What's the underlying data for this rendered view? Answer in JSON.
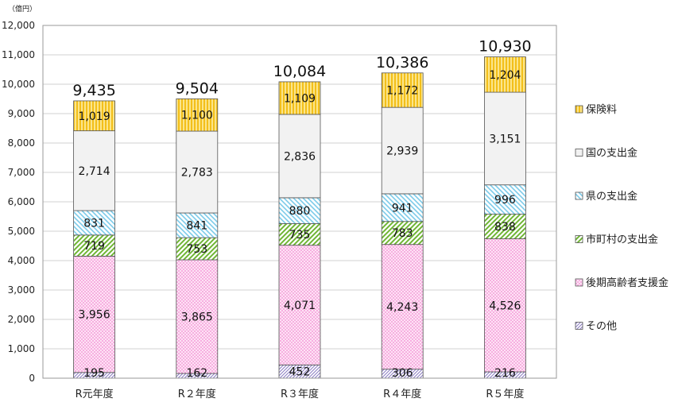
{
  "chart_data": {
    "type": "bar",
    "stacked": true,
    "unit_label": "（億円）",
    "categories": [
      "R元年度",
      "R２年度",
      "R３年度",
      "R４年度",
      "R５年度"
    ],
    "series": [
      {
        "name": "その他",
        "values": [
          195,
          162,
          452,
          306,
          216
        ],
        "color": "#9b8fc9",
        "pattern": "diag-dense"
      },
      {
        "name": "後期高齢者支援金",
        "values": [
          3956,
          3865,
          4071,
          4243,
          4526
        ],
        "color": "#f59ad8",
        "pattern": "dots"
      },
      {
        "name": "市町村の支出金",
        "values": [
          719,
          753,
          735,
          783,
          838
        ],
        "color": "#7cc043",
        "pattern": "diag-up"
      },
      {
        "name": "県の支出金",
        "values": [
          831,
          841,
          880,
          941,
          996
        ],
        "color": "#6cc3e6",
        "pattern": "diag-down"
      },
      {
        "name": "国の支出金",
        "values": [
          2714,
          2783,
          2836,
          2939,
          3151
        ],
        "color": "#f2f2f2",
        "pattern": "solid"
      },
      {
        "name": "保険料",
        "values": [
          1019,
          1100,
          1109,
          1172,
          1204
        ],
        "color": "#f5c518",
        "pattern": "vertical"
      }
    ],
    "segment_labels": [
      [
        "195",
        "162",
        "452",
        "306",
        "216"
      ],
      [
        "3,956",
        "3,865",
        "4,071",
        "4,243",
        "4,526"
      ],
      [
        "719",
        "753",
        "735",
        "783",
        "838"
      ],
      [
        "831",
        "841",
        "880",
        "941",
        "996"
      ],
      [
        "2,714",
        "2,783",
        "2,836",
        "2,939",
        "3,151"
      ],
      [
        "1,019",
        "1,100",
        "1,109",
        "1,172",
        "1,204"
      ]
    ],
    "totals": [
      "9,435",
      "9,504",
      "10,084",
      "10,386",
      "10,930"
    ],
    "ylim": [
      0,
      12000
    ],
    "yticks": [
      0,
      1000,
      2000,
      3000,
      4000,
      5000,
      6000,
      7000,
      8000,
      9000,
      10000,
      11000,
      12000
    ],
    "ytick_labels": [
      "0",
      "1,000",
      "2,000",
      "3,000",
      "4,000",
      "5,000",
      "6,000",
      "7,000",
      "8,000",
      "9,000",
      "10,000",
      "11,000",
      "12,000"
    ],
    "grid": true,
    "legend_position": "right",
    "legend_order": [
      "保険料",
      "国の支出金",
      "県の支出金",
      "市町村の支出金",
      "後期高齢者支援金",
      "その他"
    ]
  }
}
